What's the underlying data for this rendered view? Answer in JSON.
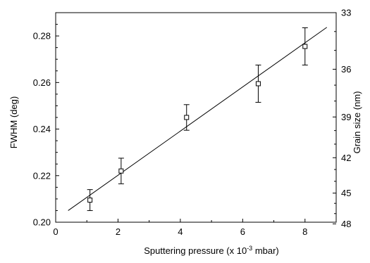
{
  "chart_data": {
    "type": "scatter",
    "xlabel_parts": [
      "Sputtering pressure (x 10",
      "-3",
      " mbar)"
    ],
    "ylabel": "FWHM (deg)",
    "y2label": "Grain size (nm)",
    "xlim": [
      0,
      9
    ],
    "ylim": [
      0.2,
      0.29
    ],
    "x_ticks": [
      0,
      2,
      4,
      6,
      8
    ],
    "y_ticks": [
      0.2,
      0.22,
      0.24,
      0.26,
      0.28
    ],
    "y2_ticks": [
      {
        "label": "33",
        "fwhm": 0.29
      },
      {
        "label": "36",
        "fwhm": 0.2657
      },
      {
        "label": "39",
        "fwhm": 0.2452
      },
      {
        "label": "42",
        "fwhm": 0.2277
      },
      {
        "label": "45",
        "fwhm": 0.2125
      },
      {
        "label": "48",
        "fwhm": 0.1993
      }
    ],
    "points": [
      {
        "x": 1.1,
        "y": 0.2095,
        "err": 0.0045
      },
      {
        "x": 2.1,
        "y": 0.222,
        "err": 0.0055
      },
      {
        "x": 4.2,
        "y": 0.245,
        "err": 0.0055
      },
      {
        "x": 6.5,
        "y": 0.2595,
        "err": 0.008
      },
      {
        "x": 8.0,
        "y": 0.2755,
        "err": 0.008
      }
    ],
    "fit_line": {
      "x": [
        0.4,
        8.7
      ],
      "y": [
        0.205,
        0.2837
      ]
    },
    "grid": false,
    "legend": "none",
    "colors": {
      "axis": "#000000",
      "marker_fill": "#ffffff",
      "line": "#000000"
    }
  }
}
